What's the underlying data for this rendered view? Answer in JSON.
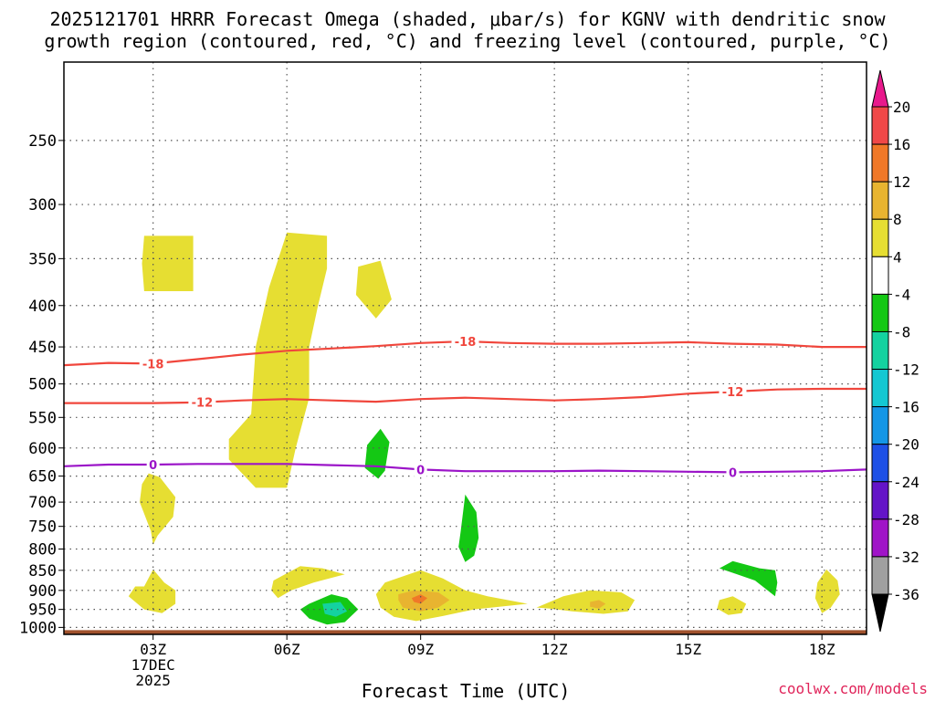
{
  "chart_data": {
    "type": "heatmap",
    "title_line1": "2025121701 HRRR Forecast Omega (shaded, μbar/s) for KGNV with dendritic snow",
    "title_line2": "growth region (contoured, red, °C) and freezing level (contoured, purple, °C)",
    "xlabel": "Forecast Time (UTC)",
    "ylabel": "",
    "x_range_hours": [
      1,
      19
    ],
    "x_ticks": [
      {
        "hour": 3,
        "label": "03Z",
        "sub1": "17DEC",
        "sub2": "2025"
      },
      {
        "hour": 6,
        "label": "06Z",
        "sub1": "",
        "sub2": ""
      },
      {
        "hour": 9,
        "label": "09Z",
        "sub1": "",
        "sub2": ""
      },
      {
        "hour": 12,
        "label": "12Z",
        "sub1": "",
        "sub2": ""
      },
      {
        "hour": 15,
        "label": "15Z",
        "sub1": "",
        "sub2": ""
      },
      {
        "hour": 18,
        "label": "18Z",
        "sub1": "",
        "sub2": ""
      }
    ],
    "y_range_hPa": [
      1020,
      200
    ],
    "y_ticks": [
      250,
      300,
      350,
      400,
      450,
      500,
      550,
      600,
      650,
      700,
      750,
      800,
      850,
      900,
      950,
      1000
    ],
    "y_scale": "log-pressure, inverted",
    "grid": true,
    "colorbar": {
      "labels": [
        "20",
        "16",
        "12",
        "8",
        "4",
        "-4",
        "-8",
        "-12",
        "-16",
        "-20",
        "-24",
        "-28",
        "-32",
        "-36"
      ],
      "bins": [
        {
          "color": "#e8198c"
        },
        {
          "color": "#f04848"
        },
        {
          "color": "#f07828"
        },
        {
          "color": "#e8b430"
        },
        {
          "color": "#e6de32"
        },
        {
          "color": "#ffffff"
        },
        {
          "color": "#14c814"
        },
        {
          "color": "#14d2a0"
        },
        {
          "color": "#14c8d2"
        },
        {
          "color": "#1496e6"
        },
        {
          "color": "#1e50e6"
        },
        {
          "color": "#6414c8"
        },
        {
          "color": "#a014c8"
        },
        {
          "color": "#a0a0a0"
        },
        {
          "color": "#000000"
        }
      ]
    },
    "contour_lines": [
      {
        "name": "-18",
        "kind": "dendritic",
        "color": "#f0463c",
        "points": [
          [
            1,
            474
          ],
          [
            2,
            471
          ],
          [
            3,
            472
          ],
          [
            4,
            466
          ],
          [
            5,
            460
          ],
          [
            6,
            455
          ],
          [
            7,
            452
          ],
          [
            8,
            449
          ],
          [
            9,
            445
          ],
          [
            10,
            443
          ],
          [
            11,
            445
          ],
          [
            12,
            446
          ],
          [
            13,
            446
          ],
          [
            14,
            445
          ],
          [
            15,
            444
          ],
          [
            16,
            446
          ],
          [
            17,
            447
          ],
          [
            18,
            450
          ],
          [
            19,
            450
          ]
        ],
        "labels": [
          {
            "hour": 3.0,
            "text": "-18"
          },
          {
            "hour": 10.0,
            "text": "-18"
          }
        ]
      },
      {
        "name": "-12",
        "kind": "dendritic",
        "color": "#f0463c",
        "points": [
          [
            1,
            528
          ],
          [
            2,
            528
          ],
          [
            3,
            528
          ],
          [
            4,
            527
          ],
          [
            5,
            524
          ],
          [
            6,
            522
          ],
          [
            7,
            524
          ],
          [
            8,
            526
          ],
          [
            9,
            522
          ],
          [
            10,
            520
          ],
          [
            11,
            522
          ],
          [
            12,
            524
          ],
          [
            13,
            522
          ],
          [
            14,
            519
          ],
          [
            15,
            514
          ],
          [
            16,
            511
          ],
          [
            17,
            508
          ],
          [
            18,
            507
          ],
          [
            19,
            507
          ]
        ],
        "labels": [
          {
            "hour": 4.1,
            "text": "-12"
          },
          {
            "hour": 16.0,
            "text": "-12"
          }
        ]
      },
      {
        "name": "0",
        "kind": "freezing",
        "color": "#9b14c8",
        "points": [
          [
            1,
            632
          ],
          [
            2,
            629
          ],
          [
            3,
            629
          ],
          [
            4,
            628
          ],
          [
            5,
            628
          ],
          [
            6,
            628
          ],
          [
            7,
            630
          ],
          [
            8,
            632
          ],
          [
            9,
            638
          ],
          [
            10,
            641
          ],
          [
            11,
            641
          ],
          [
            12,
            641
          ],
          [
            13,
            640
          ],
          [
            14,
            641
          ],
          [
            15,
            642
          ],
          [
            16,
            643
          ],
          [
            17,
            642
          ],
          [
            18,
            641
          ],
          [
            19,
            638
          ]
        ],
        "labels": [
          {
            "hour": 3.0,
            "text": "0"
          },
          {
            "hour": 9.0,
            "text": "0"
          },
          {
            "hour": 16.0,
            "text": "0"
          }
        ]
      }
    ],
    "omega_regions": [
      {
        "bin": 4,
        "points": [
          [
            2.8,
            328
          ],
          [
            3.9,
            328
          ],
          [
            3.9,
            384
          ],
          [
            2.8,
            384
          ],
          [
            2.75,
            355
          ]
        ]
      },
      {
        "bin": 4,
        "points": [
          [
            6.0,
            325
          ],
          [
            6.9,
            328
          ],
          [
            6.9,
            360
          ],
          [
            6.7,
            400
          ],
          [
            6.5,
            450
          ],
          [
            6.5,
            520
          ],
          [
            6.2,
            600
          ],
          [
            6.0,
            672
          ],
          [
            5.3,
            672
          ],
          [
            4.7,
            620
          ],
          [
            4.7,
            585
          ],
          [
            5.2,
            545
          ],
          [
            5.3,
            450
          ],
          [
            5.6,
            380
          ]
        ]
      },
      {
        "bin": 4,
        "points": [
          [
            7.6,
            358
          ],
          [
            8.1,
            352
          ],
          [
            8.35,
            393
          ],
          [
            8.0,
            415
          ],
          [
            7.55,
            388
          ]
        ]
      },
      {
        "bin": 6,
        "points": [
          [
            7.8,
            595
          ],
          [
            8.1,
            568
          ],
          [
            8.3,
            590
          ],
          [
            8.2,
            640
          ],
          [
            8.05,
            655
          ],
          [
            7.75,
            635
          ]
        ]
      },
      {
        "bin": 4,
        "points": [
          [
            2.9,
            645
          ],
          [
            3.15,
            652
          ],
          [
            3.5,
            690
          ],
          [
            3.45,
            730
          ],
          [
            3.1,
            770
          ],
          [
            3.0,
            790
          ],
          [
            2.95,
            760
          ],
          [
            2.7,
            700
          ],
          [
            2.75,
            665
          ]
        ]
      },
      {
        "bin": 6,
        "points": [
          [
            10.0,
            685
          ],
          [
            10.25,
            720
          ],
          [
            10.3,
            775
          ],
          [
            10.2,
            815
          ],
          [
            10.0,
            830
          ],
          [
            9.85,
            795
          ],
          [
            9.9,
            760
          ]
        ]
      },
      {
        "bin": 4,
        "points": [
          [
            2.8,
            890
          ],
          [
            3.0,
            848
          ],
          [
            3.25,
            880
          ],
          [
            3.5,
            900
          ],
          [
            3.5,
            935
          ],
          [
            3.2,
            960
          ],
          [
            2.8,
            950
          ],
          [
            2.45,
            915
          ],
          [
            2.6,
            890
          ]
        ]
      },
      {
        "bin": 4,
        "points": [
          [
            5.7,
            875
          ],
          [
            6.3,
            840
          ],
          [
            6.8,
            845
          ],
          [
            7.3,
            860
          ],
          [
            6.6,
            880
          ],
          [
            6.1,
            900
          ],
          [
            5.8,
            920
          ],
          [
            5.65,
            900
          ]
        ]
      },
      {
        "bin": 6,
        "points": [
          [
            6.5,
            935
          ],
          [
            7.0,
            910
          ],
          [
            7.35,
            920
          ],
          [
            7.6,
            950
          ],
          [
            7.3,
            985
          ],
          [
            6.9,
            992
          ],
          [
            6.5,
            975
          ],
          [
            6.3,
            950
          ]
        ]
      },
      {
        "bin": 7,
        "points": [
          [
            6.8,
            935
          ],
          [
            7.2,
            930
          ],
          [
            7.35,
            955
          ],
          [
            7.1,
            970
          ],
          [
            6.85,
            962
          ]
        ]
      },
      {
        "bin": 4,
        "points": [
          [
            8.2,
            880
          ],
          [
            9.0,
            850
          ],
          [
            9.5,
            870
          ],
          [
            10.0,
            900
          ],
          [
            10.5,
            915
          ],
          [
            11.4,
            935
          ],
          [
            10.2,
            950
          ],
          [
            9.5,
            968
          ],
          [
            8.9,
            982
          ],
          [
            8.4,
            970
          ],
          [
            8.1,
            945
          ],
          [
            8.0,
            910
          ]
        ]
      },
      {
        "bin": 3,
        "points": [
          [
            8.5,
            910
          ],
          [
            8.85,
            900
          ],
          [
            9.4,
            905
          ],
          [
            9.65,
            925
          ],
          [
            9.4,
            945
          ],
          [
            9.0,
            955
          ],
          [
            8.6,
            945
          ],
          [
            8.5,
            925
          ]
        ]
      },
      {
        "bin": 2,
        "points": [
          [
            8.8,
            920
          ],
          [
            9.0,
            910
          ],
          [
            9.15,
            920
          ],
          [
            9.0,
            935
          ],
          [
            8.85,
            930
          ]
        ]
      },
      {
        "bin": 4,
        "points": [
          [
            11.6,
            945
          ],
          [
            12.2,
            915
          ],
          [
            12.8,
            900
          ],
          [
            13.5,
            905
          ],
          [
            13.8,
            925
          ],
          [
            13.65,
            955
          ],
          [
            13.1,
            962
          ],
          [
            12.4,
            955
          ],
          [
            11.9,
            948
          ]
        ]
      },
      {
        "bin": 3,
        "points": [
          [
            12.8,
            930
          ],
          [
            13.0,
            925
          ],
          [
            13.15,
            935
          ],
          [
            13.0,
            948
          ],
          [
            12.8,
            943
          ]
        ]
      },
      {
        "bin": 4,
        "points": [
          [
            15.7,
            925
          ],
          [
            16.0,
            915
          ],
          [
            16.3,
            935
          ],
          [
            16.2,
            960
          ],
          [
            15.9,
            965
          ],
          [
            15.65,
            948
          ]
        ]
      },
      {
        "bin": 6,
        "points": [
          [
            15.7,
            845
          ],
          [
            16.0,
            828
          ],
          [
            16.6,
            845
          ],
          [
            16.95,
            850
          ],
          [
            17.0,
            880
          ],
          [
            16.95,
            915
          ],
          [
            16.5,
            875
          ],
          [
            16.1,
            860
          ]
        ]
      },
      {
        "bin": 4,
        "points": [
          [
            17.9,
            880
          ],
          [
            18.1,
            848
          ],
          [
            18.35,
            875
          ],
          [
            18.4,
            910
          ],
          [
            18.2,
            945
          ],
          [
            18.0,
            960
          ],
          [
            17.85,
            920
          ]
        ]
      }
    ],
    "ground_color": "#a0522d",
    "credit": "coolwx.com/models"
  }
}
